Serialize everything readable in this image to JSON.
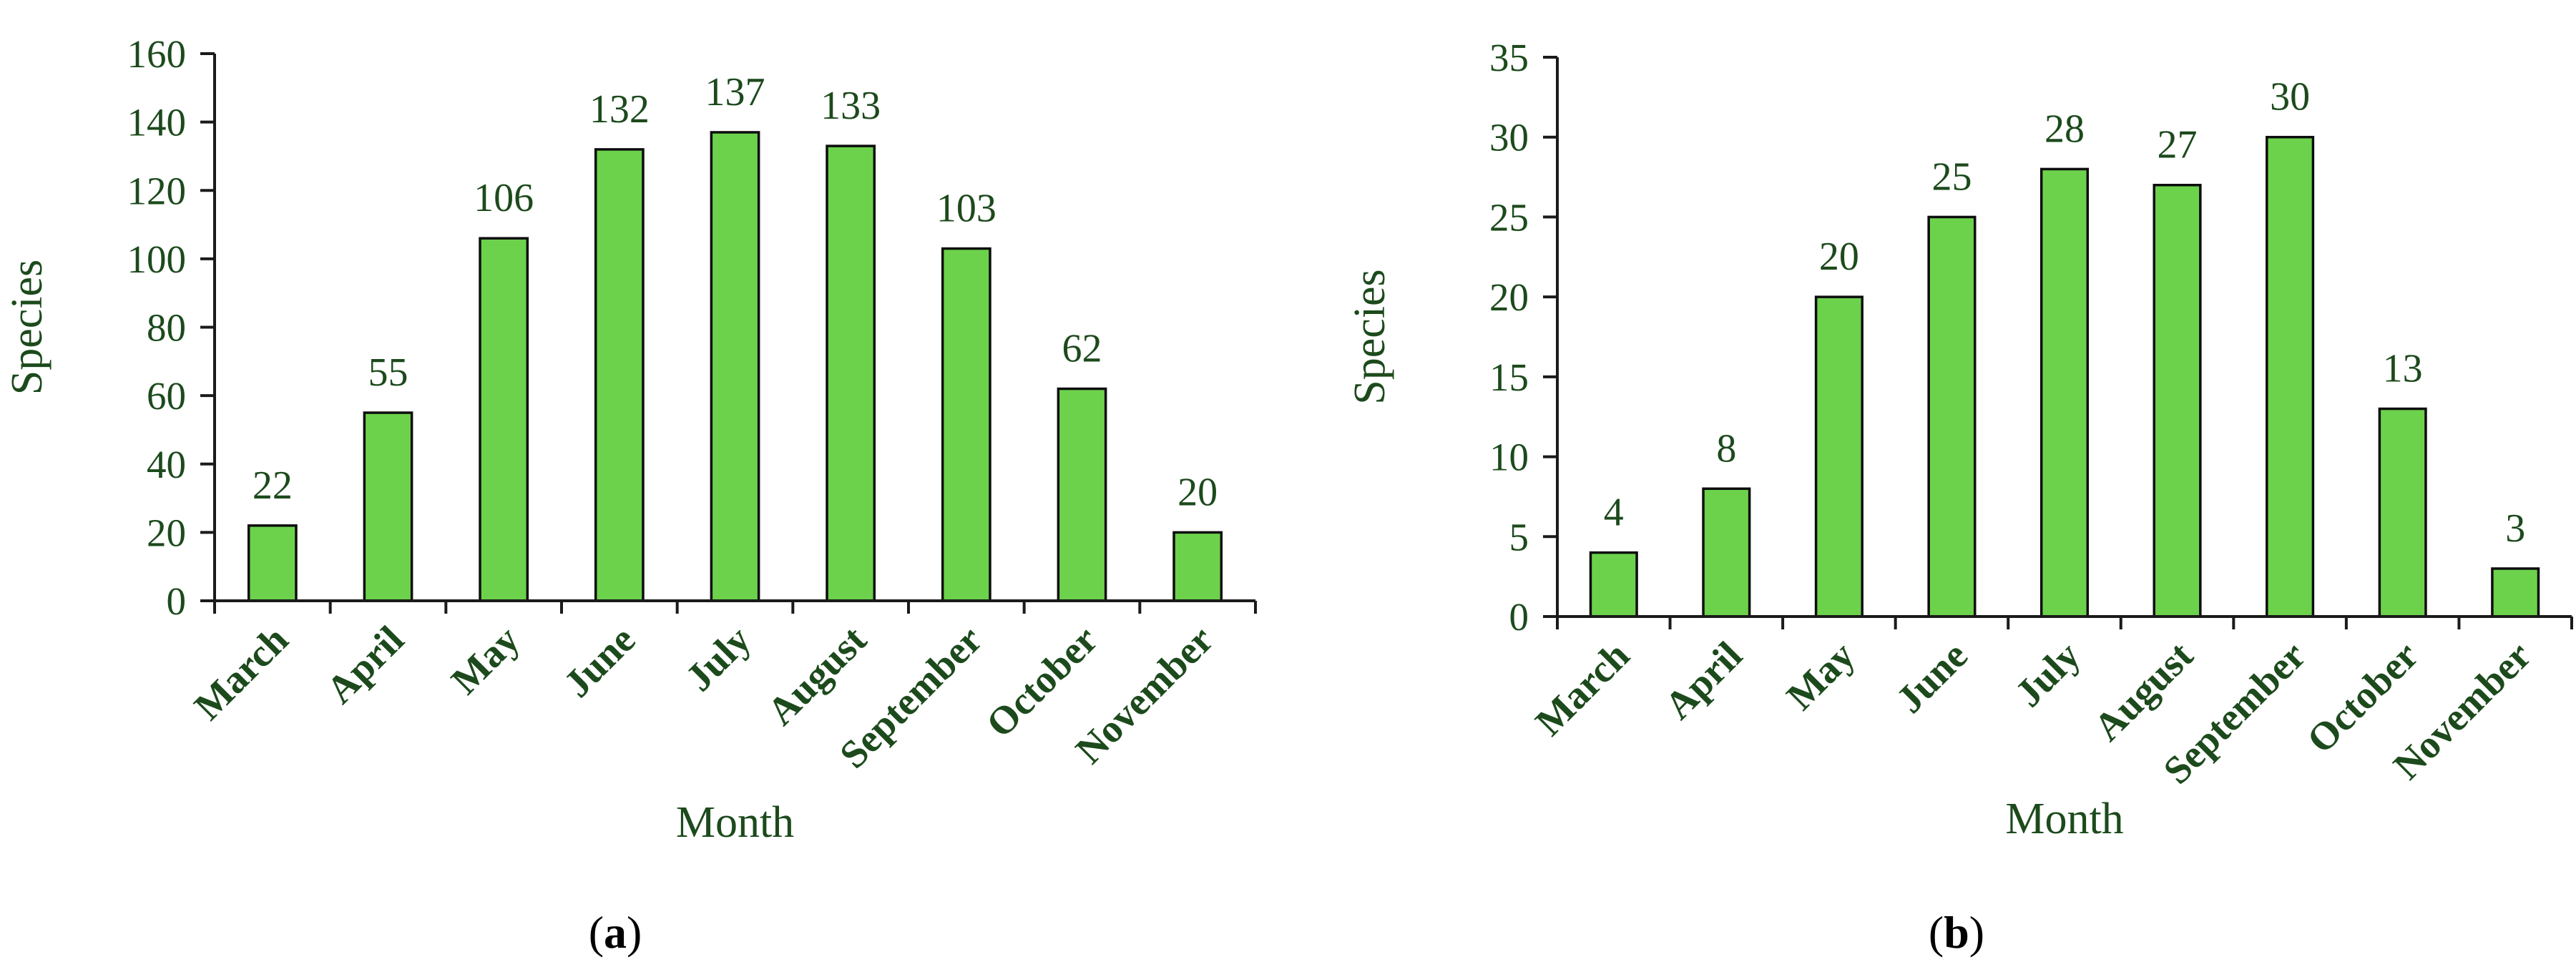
{
  "chart_data": [
    {
      "type": "bar",
      "panel_label": "a",
      "categories": [
        "March",
        "April",
        "May",
        "June",
        "July",
        "August",
        "September",
        "October",
        "November"
      ],
      "values": [
        22,
        55,
        106,
        132,
        137,
        133,
        103,
        62,
        20
      ],
      "data_labels": [
        "22",
        "55",
        "106",
        "132",
        "137",
        "133",
        "103",
        "62",
        "20"
      ],
      "xlabel": "Month",
      "ylabel": "Species",
      "ylim": [
        0,
        160
      ],
      "yticks": [
        0,
        20,
        40,
        60,
        80,
        100,
        120,
        140,
        160
      ],
      "ytick_labels": [
        "0",
        "20",
        "40",
        "60",
        "80",
        "100",
        "120",
        "140",
        "160"
      ],
      "grid": false,
      "bar_color": "#6cd24c"
    },
    {
      "type": "bar",
      "panel_label": "b",
      "categories": [
        "March",
        "April",
        "May",
        "June",
        "July",
        "August",
        "September",
        "October",
        "November"
      ],
      "values": [
        4,
        8,
        20,
        25,
        28,
        27,
        30,
        13,
        3
      ],
      "data_labels": [
        "4",
        "8",
        "20",
        "25",
        "28",
        "27",
        "30",
        "13",
        "3"
      ],
      "xlabel": "Month",
      "ylabel": "Species",
      "ylim": [
        0,
        35
      ],
      "yticks": [
        0,
        5,
        10,
        15,
        20,
        25,
        30,
        35
      ],
      "ytick_labels": [
        "0",
        "5",
        "10",
        "15",
        "20",
        "25",
        "30",
        "35"
      ],
      "grid": false,
      "bar_color": "#6cd24c"
    }
  ],
  "colors": {
    "text": "#1c4a1c",
    "axis": "#1a1a1a",
    "bar_fill": "#6cd24c",
    "bar_stroke": "#0d0d0d"
  }
}
